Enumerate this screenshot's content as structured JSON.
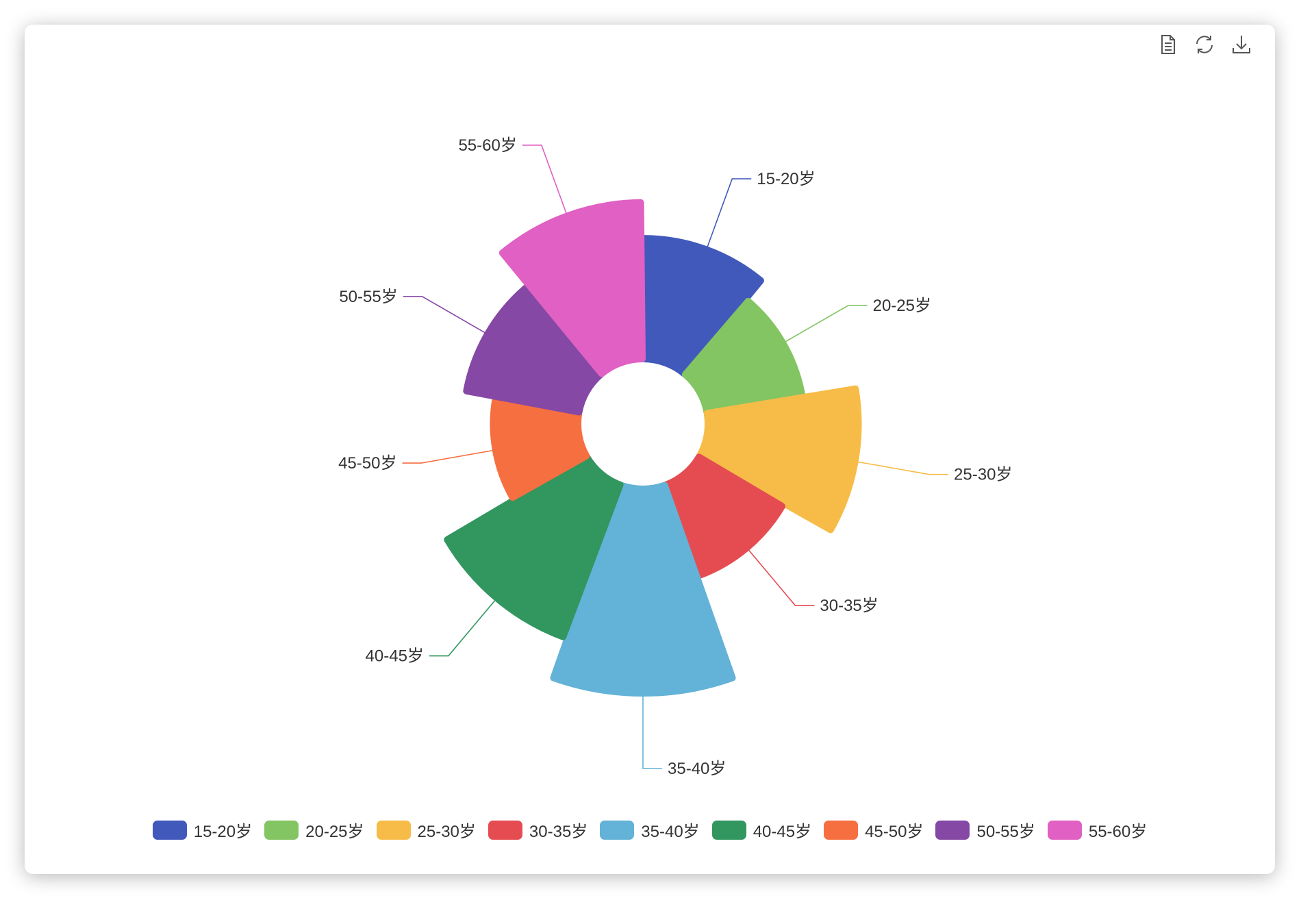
{
  "toolbar": {
    "items": [
      {
        "name": "data-view-icon"
      },
      {
        "name": "refresh-icon"
      },
      {
        "name": "download-icon"
      }
    ]
  },
  "chart_data": {
    "type": "nightingale-rose",
    "categories": [
      "15-20岁",
      "20-25岁",
      "25-30岁",
      "30-35岁",
      "35-40岁",
      "40-45岁",
      "45-50岁",
      "50-55岁",
      "55-60岁"
    ],
    "values": [
      30,
      22,
      40,
      22,
      58,
      44,
      18,
      28,
      42
    ],
    "colors": [
      "#4159bb",
      "#82c562",
      "#f7bc48",
      "#e54c51",
      "#63b2d7",
      "#32965f",
      "#f66f41",
      "#8648a5",
      "#e060c3"
    ],
    "legend_position": "bottom"
  }
}
